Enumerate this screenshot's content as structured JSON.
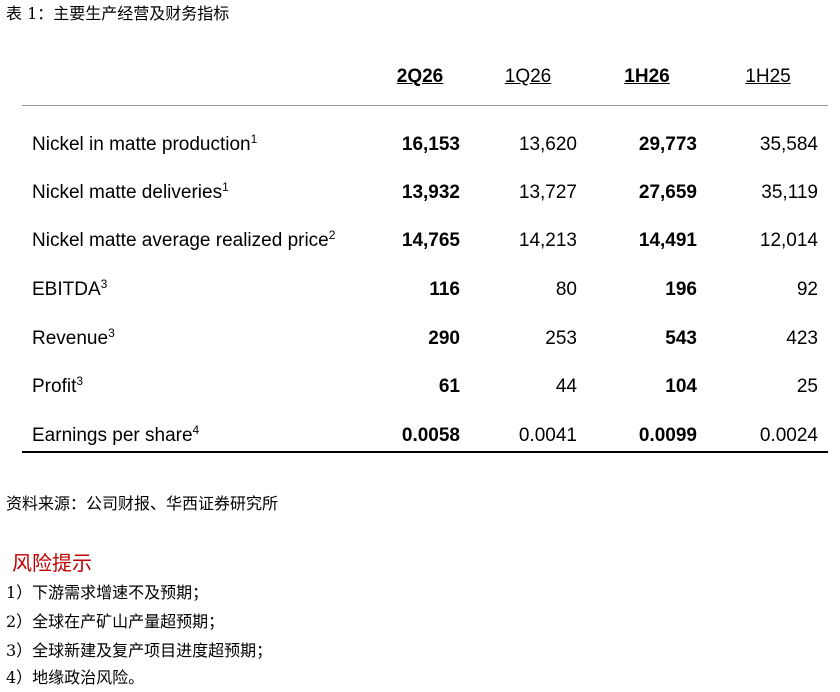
{
  "caption": "表 1：主要生产经营及财务指标",
  "table": {
    "columns": [
      "2Q26",
      "1Q26",
      "1H26",
      "1H25"
    ],
    "rows": [
      {
        "label": "Nickel in matte production",
        "note": "1",
        "values": [
          "16,153",
          "13,620",
          "29,773",
          "35,584"
        ]
      },
      {
        "label": "Nickel matte deliveries",
        "note": "1",
        "values": [
          "13,932",
          "13,727",
          "27,659",
          "35,119"
        ]
      },
      {
        "label": "Nickel matte average realized price",
        "note": "2",
        "values": [
          "14,765",
          "14,213",
          "14,491",
          "12,014"
        ]
      },
      {
        "label": "EBITDA",
        "note": "3",
        "values": [
          "116",
          "80",
          "196",
          "92"
        ]
      },
      {
        "label": "Revenue",
        "note": "3",
        "values": [
          "290",
          "253",
          "543",
          "423"
        ]
      },
      {
        "label": "Profit",
        "note": "3",
        "values": [
          "61",
          "44",
          "104",
          "25"
        ]
      },
      {
        "label": "Earnings per share",
        "note": "4",
        "values": [
          "0.0058",
          "0.0041",
          "0.0099",
          "0.0024"
        ]
      }
    ]
  },
  "source": "资料来源：公司财报、华西证券研究所",
  "risk": {
    "title": "风险提示",
    "items": [
      "1）下游需求增速不及预期；",
      "2）全球在产矿山产量超预期；",
      "3）全球新建及复产项目进度超预期；",
      "4）地缘政治风险。"
    ]
  }
}
